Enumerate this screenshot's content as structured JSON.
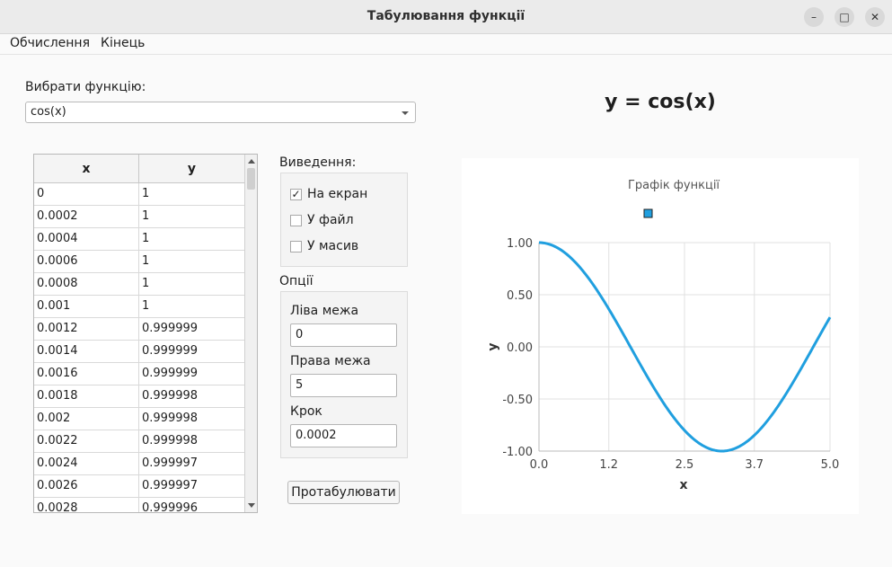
{
  "window": {
    "title": "Табулювання функції"
  },
  "menu": {
    "items": [
      "Обчислення",
      "Кінець"
    ]
  },
  "function_select": {
    "label": "Вибрати функцію:",
    "value": "cos(x)"
  },
  "formula": "y = cos(x)",
  "table": {
    "headers": [
      "x",
      "y"
    ],
    "rows": [
      [
        "0",
        "1"
      ],
      [
        "0.0002",
        "1"
      ],
      [
        "0.0004",
        "1"
      ],
      [
        "0.0006",
        "1"
      ],
      [
        "0.0008",
        "1"
      ],
      [
        "0.001",
        "1"
      ],
      [
        "0.0012",
        "0.999999"
      ],
      [
        "0.0014",
        "0.999999"
      ],
      [
        "0.0016",
        "0.999999"
      ],
      [
        "0.0018",
        "0.999998"
      ],
      [
        "0.002",
        "0.999998"
      ],
      [
        "0.0022",
        "0.999998"
      ],
      [
        "0.0024",
        "0.999997"
      ],
      [
        "0.0026",
        "0.999997"
      ],
      [
        "0.0028",
        "0.999996"
      ]
    ]
  },
  "output": {
    "label": "Виведення:",
    "options": [
      {
        "label": "На екран",
        "checked": true
      },
      {
        "label": "У файл",
        "checked": false
      },
      {
        "label": "У масив",
        "checked": false
      }
    ]
  },
  "options": {
    "label": "Опції",
    "left_label": "Ліва межа",
    "left_value": "0",
    "right_label": "Права межа",
    "right_value": "5",
    "step_label": "Крок",
    "step_value": "0.0002"
  },
  "tabulate_button": "Протабулювати",
  "colors": {
    "series": "#209fdf",
    "grid": "#e0e0e0"
  },
  "chart_data": {
    "type": "line",
    "title": "Графік функції",
    "xlabel": "x",
    "ylabel": "y",
    "xlim": [
      0,
      5
    ],
    "ylim": [
      -1,
      1
    ],
    "x_ticks": [
      "0.0",
      "1.2",
      "2.5",
      "3.7",
      "5.0"
    ],
    "y_ticks": [
      "1.00",
      "0.50",
      "0.00",
      "-0.50",
      "-1.00"
    ],
    "grid": true,
    "legend": "top-center",
    "series": [
      {
        "function": "cos(x)",
        "x": [
          0,
          0.25,
          0.5,
          0.75,
          1,
          1.25,
          1.5,
          1.75,
          2,
          2.25,
          2.5,
          2.75,
          3,
          3.14,
          3.25,
          3.5,
          3.75,
          4,
          4.25,
          4.5,
          4.75,
          5
        ],
        "y": [
          1,
          0.969,
          0.878,
          0.732,
          0.54,
          0.315,
          0.071,
          -0.178,
          -0.416,
          -0.628,
          -0.801,
          -0.924,
          -0.99,
          -1.0,
          -0.994,
          -0.936,
          -0.821,
          -0.654,
          -0.446,
          -0.211,
          0.037,
          0.284
        ]
      }
    ]
  }
}
